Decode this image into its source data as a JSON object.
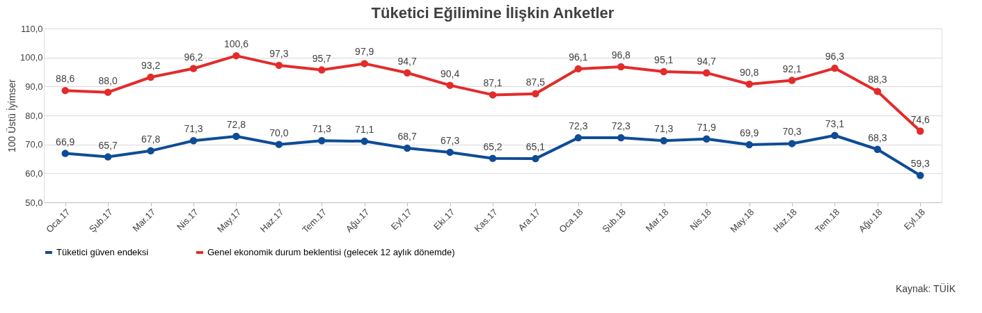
{
  "chart_data": {
    "type": "line",
    "title": "Tüketici Eğilimine İlişkin Anketler",
    "ylabel": "100 Üstü İyimser",
    "categories": [
      "Oca.17",
      "Şub.17",
      "Mar.17",
      "Nis.17",
      "May.17",
      "Haz.17",
      "Tem.17",
      "Ağu.17",
      "Eyl.17",
      "Eki.17",
      "Kas.17",
      "Ara.17",
      "Oca.18",
      "Şub.18",
      "Mar.18",
      "Nis.18",
      "May.18",
      "Haz.18",
      "Tem.18",
      "Ağu.18",
      "Eyl.18"
    ],
    "series": [
      {
        "name": "Tüketici güven endeksi",
        "color": "#0f4c96",
        "values": [
          66.9,
          65.7,
          67.8,
          71.3,
          72.8,
          70.0,
          71.3,
          71.1,
          68.7,
          67.3,
          65.2,
          65.1,
          72.3,
          72.3,
          71.3,
          71.9,
          69.9,
          70.3,
          73.1,
          68.3,
          59.3
        ],
        "value_labels": [
          "66,9",
          "65,7",
          "67,8",
          "71,3",
          "72,8",
          "70,0",
          "71,3",
          "71,1",
          "68,7",
          "67,3",
          "65,2",
          "65,1",
          "72,3",
          "72,3",
          "71,3",
          "71,9",
          "69,9",
          "70,3",
          "73,1",
          "68,3",
          "59,3"
        ]
      },
      {
        "name": "Genel ekonomik durum beklentisi (gelecek 12 aylık dönemde)",
        "color": "#e32b2b",
        "values": [
          88.6,
          88.0,
          93.2,
          96.2,
          100.6,
          97.3,
          95.7,
          97.9,
          94.7,
          90.4,
          87.1,
          87.5,
          96.1,
          96.8,
          95.1,
          94.7,
          90.8,
          92.1,
          96.3,
          88.3,
          74.6
        ],
        "value_labels": [
          "88,6",
          "88,0",
          "93,2",
          "96,2",
          "100,6",
          "97,3",
          "95,7",
          "97,9",
          "94,7",
          "90,4",
          "87,1",
          "87,5",
          "96,1",
          "96,8",
          "95,1",
          "94,7",
          "90,8",
          "92,1",
          "96,3",
          "88,3",
          "74,6"
        ]
      }
    ],
    "ylim": [
      50,
      110
    ],
    "yticks": [
      {
        "value": 50,
        "label": "50,0"
      },
      {
        "value": 60,
        "label": "60,0"
      },
      {
        "value": 70,
        "label": "70,0"
      },
      {
        "value": 80,
        "label": "80,0"
      },
      {
        "value": 90,
        "label": "90,0"
      },
      {
        "value": 100,
        "label": "100,0"
      },
      {
        "value": 110,
        "label": "110,0"
      }
    ],
    "grid": "y",
    "legend": "bottom",
    "marker": "circle",
    "line_style": "solid",
    "annotations": [
      "Kaynak: TÜİK"
    ]
  }
}
